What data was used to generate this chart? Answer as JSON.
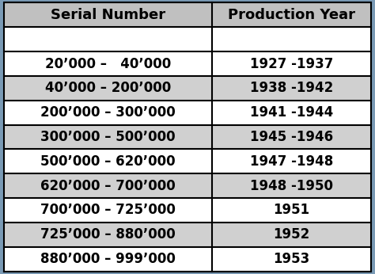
{
  "col1_header": "Serial Number",
  "col2_header": "Production Year",
  "rows": [
    [
      "",
      ""
    ],
    [
      "20’000 –   40’000",
      "1927 -1937"
    ],
    [
      "40’000 – 200’000",
      "1938 -1942"
    ],
    [
      "200’000 – 300’000",
      "1941 -1944"
    ],
    [
      "300’000 – 500’000",
      "1945 -1946"
    ],
    [
      "500’000 – 620’000",
      "1947 -1948"
    ],
    [
      "620’000 – 700’000",
      "1948 -1950"
    ],
    [
      "700’000 – 725’000",
      "1951"
    ],
    [
      "725’000 – 880’000",
      "1952"
    ],
    [
      "880’000 – 999’000",
      "1953"
    ]
  ],
  "header_bg": "#c0c0c0",
  "header_text": "#000000",
  "row_bg_white": "#ffffff",
  "row_bg_gray": "#d0d0d0",
  "row_colors": [
    "w",
    "w",
    "g",
    "w",
    "g",
    "w",
    "g",
    "w",
    "g",
    "w"
  ],
  "border_color": "#000000",
  "text_color": "#000000",
  "font_size": 12,
  "header_font_size": 13,
  "fig_bg": "#7a9ab5",
  "col_split": 0.565
}
